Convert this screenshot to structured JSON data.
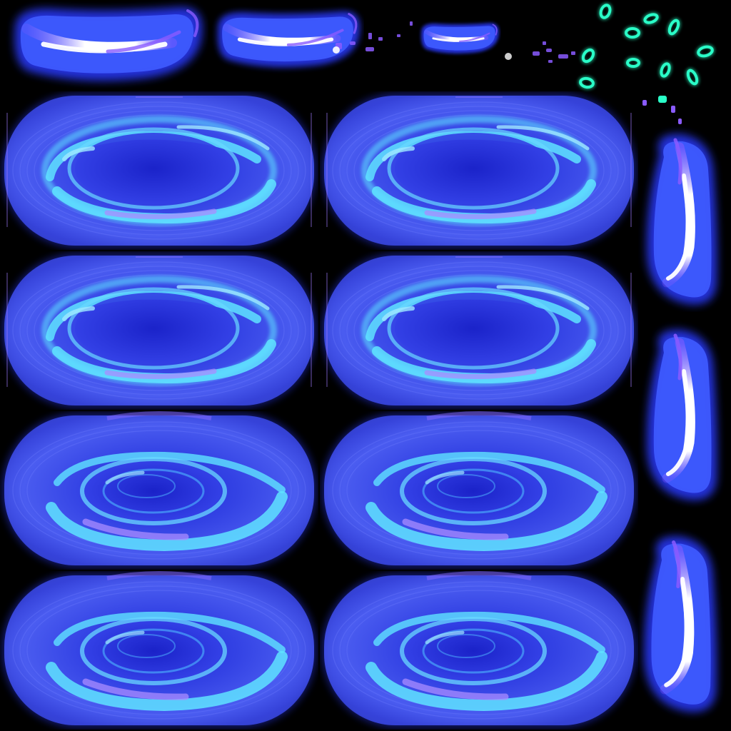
{
  "colors": {
    "background": "#000000",
    "glow_outer": "#2a3bff",
    "glow_mid": "#3f5cff",
    "portal_fill": "#3b49e8",
    "portal_core": "#2230d8",
    "ring_cyan": "#5fe3ff",
    "ring_light": "#9fe8ff",
    "ring_violet": "#a98cff",
    "streak_white": "#ffffff",
    "streak_violet": "#8a5bff",
    "shard_teal": "#2affc8"
  },
  "sprites": {
    "portal_frames": [
      {
        "name": "portal-frame-1",
        "swirl": "open"
      },
      {
        "name": "portal-frame-2",
        "swirl": "open"
      },
      {
        "name": "portal-frame-3",
        "swirl": "open"
      },
      {
        "name": "portal-frame-4",
        "swirl": "open"
      },
      {
        "name": "portal-frame-5",
        "swirl": "tight"
      },
      {
        "name": "portal-frame-6",
        "swirl": "tight"
      },
      {
        "name": "portal-frame-7",
        "swirl": "tight"
      },
      {
        "name": "portal-frame-8",
        "swirl": "tight"
      }
    ],
    "slash_frames": [
      "slash-horizontal-1",
      "slash-horizontal-2",
      "slash-horizontal-3"
    ],
    "vertical_slash_frames": [
      "slash-vertical-1",
      "slash-vertical-2",
      "slash-vertical-3"
    ],
    "particle_burst": "teal-shard-particles"
  }
}
